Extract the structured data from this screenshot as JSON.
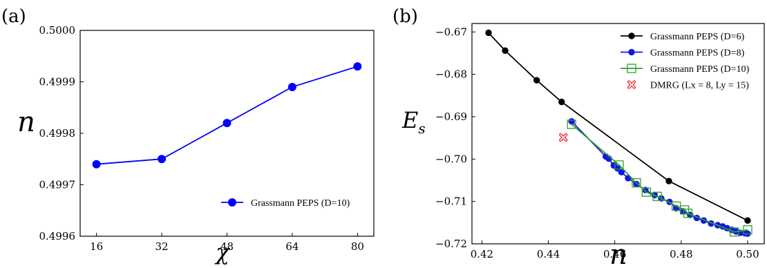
{
  "chart_data": [
    {
      "panel_label": "(a)",
      "type": "line",
      "xlabel": "χ",
      "ylabel": "n",
      "xlim": [
        12,
        84
      ],
      "ylim": [
        0.4996,
        0.5
      ],
      "xticks": [
        16,
        32,
        48,
        64,
        80
      ],
      "yticks": [
        0.4996,
        0.4997,
        0.4998,
        0.4999,
        0.5
      ],
      "xtick_labels": [
        "16",
        "32",
        "48",
        "64",
        "80"
      ],
      "ytick_labels": [
        "0.4996",
        "0.4997",
        "0.4998",
        "0.4999",
        "0.5000"
      ],
      "grid": false,
      "legend_position": "lower-right",
      "series": [
        {
          "name": "Grassmann PEPS (D=10)",
          "color": "#0000ff",
          "marker": "circle",
          "x": [
            16,
            32,
            48,
            64,
            80
          ],
          "y": [
            0.49974,
            0.49975,
            0.49982,
            0.49989,
            0.49993
          ]
        }
      ]
    },
    {
      "panel_label": "(b)",
      "type": "line",
      "xlabel": "n",
      "ylabel": "E_s",
      "xlim": [
        0.417,
        0.505
      ],
      "ylim": [
        -0.72,
        -0.668
      ],
      "xticks": [
        0.42,
        0.44,
        0.46,
        0.48,
        0.5
      ],
      "yticks": [
        -0.67,
        -0.68,
        -0.69,
        -0.7,
        -0.71,
        -0.72
      ],
      "xtick_labels": [
        "0.42",
        "0.44",
        "0.46",
        "0.48",
        "0.50"
      ],
      "ytick_labels": [
        "−0.67",
        "−0.68",
        "−0.69",
        "−0.70",
        "−0.71",
        "−0.72"
      ],
      "grid": false,
      "legend_position": "top-right",
      "series": [
        {
          "name": "Grassmann PEPS (D=6)",
          "color": "#000000",
          "marker": "circle",
          "x": [
            0.422,
            0.427,
            0.4365,
            0.444,
            0.4763,
            0.5
          ],
          "y": [
            -0.6702,
            -0.6744,
            -0.6814,
            -0.6865,
            -0.7052,
            -0.7145
          ]
        },
        {
          "name": "Grassmann PEPS (D=8)",
          "color": "#1515e6",
          "marker": "circle",
          "x": [
            0.447,
            0.4573,
            0.4582,
            0.4597,
            0.4608,
            0.462,
            0.464,
            0.4665,
            0.4692,
            0.472,
            0.474,
            0.4765,
            0.4785,
            0.4805,
            0.4827,
            0.4847,
            0.4868,
            0.489,
            0.491,
            0.4925,
            0.4938,
            0.4952,
            0.4965,
            0.4978,
            0.4992,
            0.5
          ],
          "y": [
            -0.6911,
            -0.6994,
            -0.6999,
            -0.7015,
            -0.7022,
            -0.7031,
            -0.7045,
            -0.7059,
            -0.7073,
            -0.7085,
            -0.7093,
            -0.7101,
            -0.7116,
            -0.7123,
            -0.7132,
            -0.7139,
            -0.7145,
            -0.7152,
            -0.7156,
            -0.7159,
            -0.7163,
            -0.7167,
            -0.7171,
            -0.7174,
            -0.7175,
            -0.7176
          ]
        },
        {
          "name": "Grassmann PEPS (D=10)",
          "color": "#2ca02c",
          "marker": "open-square",
          "x": [
            0.447,
            0.4613,
            0.4665,
            0.4695,
            0.4728,
            0.4785,
            0.481,
            0.482,
            0.496,
            0.5
          ],
          "y": [
            -0.6918,
            -0.7014,
            -0.7056,
            -0.7078,
            -0.7088,
            -0.7111,
            -0.712,
            -0.7128,
            -0.7172,
            -0.7167
          ]
        },
        {
          "name": "DMRG (Lx = 8, Ly = 15)",
          "color": "#e8292e",
          "marker": "open-x",
          "x": [
            0.4445
          ],
          "y": [
            -0.6949
          ]
        }
      ]
    }
  ]
}
